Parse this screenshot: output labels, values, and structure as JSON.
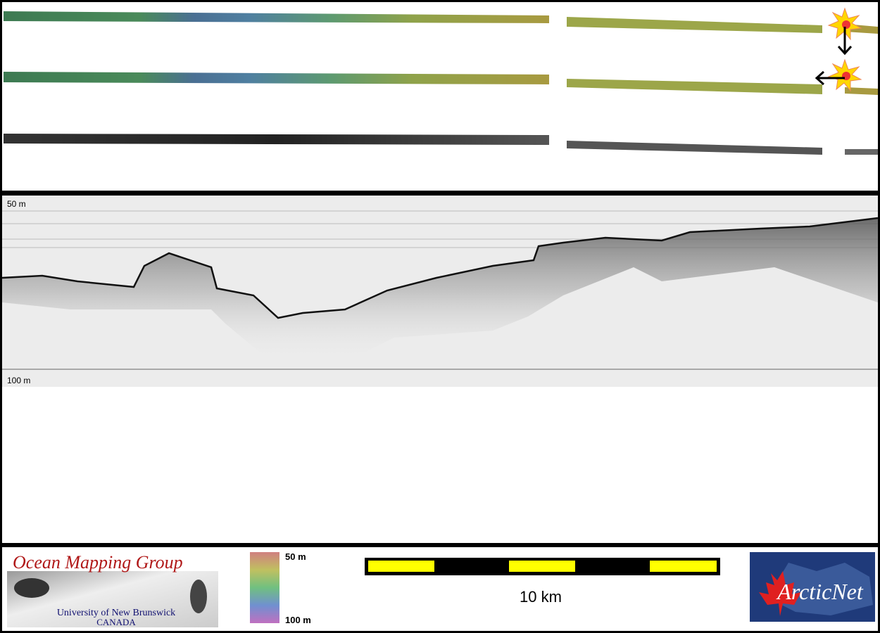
{
  "profile": {
    "top_depth_label": "50 m",
    "bottom_depth_label": "100 m"
  },
  "legend": {
    "colorbar_top_label": "50 m",
    "colorbar_bottom_label": "100 m",
    "scale_bar_label": "10 km"
  },
  "logos": {
    "omg_title": "Ocean Mapping Group",
    "omg_university": "University of New Brunswick",
    "omg_country": "CANADA",
    "arcticnet": "ArcticNet"
  }
}
